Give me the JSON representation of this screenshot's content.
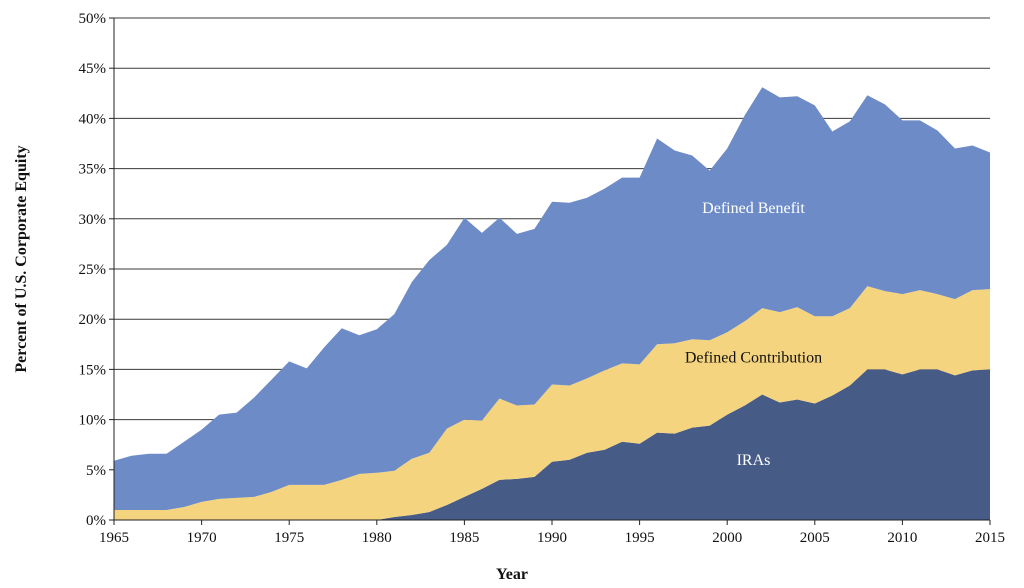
{
  "chart_data": {
    "type": "area",
    "stacked": true,
    "title": "",
    "xlabel": "Year",
    "ylabel": "Percent of U.S. Corporate Equity",
    "xlim": [
      1965,
      2015
    ],
    "ylim": [
      0,
      50
    ],
    "x_ticks": [
      "1965",
      "1970",
      "1975",
      "1980",
      "1985",
      "1990",
      "1995",
      "2000",
      "2005",
      "2010",
      "2015"
    ],
    "y_ticks": [
      "0%",
      "5%",
      "10%",
      "15%",
      "20%",
      "25%",
      "30%",
      "35%",
      "40%",
      "45%",
      "50%"
    ],
    "grid": "horizontal",
    "legend": "none",
    "x": [
      1965,
      1966,
      1967,
      1968,
      1969,
      1970,
      1971,
      1972,
      1973,
      1974,
      1975,
      1976,
      1977,
      1978,
      1979,
      1980,
      1981,
      1982,
      1983,
      1984,
      1985,
      1986,
      1987,
      1988,
      1989,
      1990,
      1991,
      1992,
      1993,
      1994,
      1995,
      1996,
      1997,
      1998,
      1999,
      2000,
      2001,
      2002,
      2003,
      2004,
      2005,
      2006,
      2007,
      2008,
      2009,
      2010,
      2011,
      2012,
      2013,
      2014,
      2015
    ],
    "series": [
      {
        "name": "IRAs",
        "color": "#475b87",
        "label_color": "#ffffff",
        "values": [
          0,
          0,
          0,
          0,
          0,
          0,
          0,
          0,
          0,
          0,
          0,
          0,
          0,
          0,
          0,
          0,
          0.3,
          0.5,
          0.8,
          1.5,
          2.3,
          3.1,
          4.0,
          4.1,
          4.3,
          5.8,
          6.0,
          6.7,
          7.0,
          7.8,
          7.6,
          8.7,
          8.6,
          9.2,
          9.4,
          10.5,
          11.4,
          12.5,
          11.7,
          12.0,
          11.6,
          12.4,
          13.4,
          15.0,
          15.0,
          14.5,
          15.0,
          15.0,
          14.4,
          14.9,
          15.0
        ]
      },
      {
        "name": "Defined Contribution",
        "color": "#f5d47f",
        "label_color": "#111111",
        "values": [
          1.0,
          1.0,
          1.0,
          1.0,
          1.3,
          1.8,
          2.1,
          2.2,
          2.3,
          2.8,
          3.5,
          3.5,
          3.5,
          4.0,
          4.6,
          4.7,
          4.6,
          5.6,
          5.9,
          7.6,
          7.7,
          6.8,
          8.1,
          7.3,
          7.2,
          7.7,
          7.4,
          7.4,
          7.9,
          7.8,
          7.9,
          8.8,
          9.0,
          8.8,
          8.5,
          8.2,
          8.4,
          8.6,
          9.0,
          9.2,
          8.7,
          7.9,
          7.7,
          8.3,
          7.8,
          8.0,
          7.9,
          7.5,
          7.6,
          8.0,
          8.0
        ]
      },
      {
        "name": "Defined Benefit",
        "color": "#6d8bc6",
        "label_color": "#ffffff",
        "values": [
          4.9,
          5.4,
          5.6,
          5.6,
          6.5,
          7.2,
          8.4,
          8.5,
          9.9,
          11.2,
          12.3,
          11.6,
          13.7,
          15.1,
          13.8,
          14.3,
          15.6,
          17.6,
          19.2,
          18.3,
          20.1,
          18.7,
          18.0,
          17.1,
          17.5,
          18.2,
          18.2,
          18.0,
          18.1,
          18.5,
          18.6,
          20.5,
          19.2,
          18.3,
          16.9,
          18.3,
          20.5,
          22.0,
          21.4,
          21.0,
          21.0,
          18.4,
          18.6,
          19.0,
          18.6,
          17.3,
          16.9,
          16.3,
          15.0,
          14.4,
          13.6
        ]
      }
    ]
  }
}
